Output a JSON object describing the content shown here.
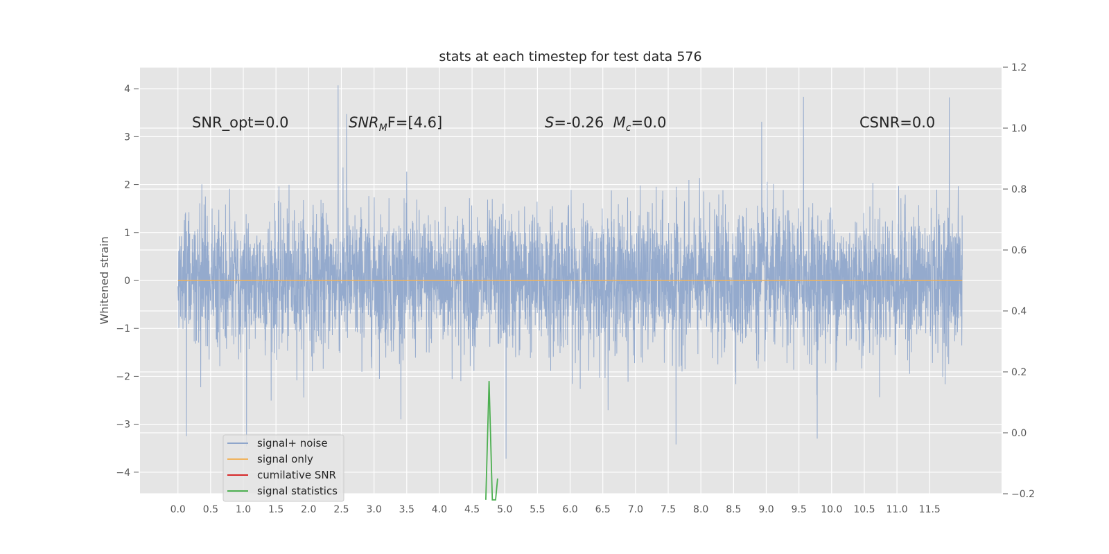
{
  "chart_data": {
    "type": "line",
    "title": "stats at each timestep for test data 576",
    "ylabel": "Whitened strain",
    "xlabel": "",
    "xlim": [
      -0.58,
      12.6
    ],
    "ylim": [
      -4.45,
      4.45
    ],
    "y2lim": [
      -0.2,
      1.2
    ],
    "x_ticks": [
      "0.0",
      "0.5",
      "1.0",
      "1.5",
      "2.0",
      "2.5",
      "3.0",
      "3.5",
      "4.0",
      "4.5",
      "5.0",
      "5.5",
      "6.0",
      "6.5",
      "7.0",
      "7.5",
      "8.0",
      "8.5",
      "9.0",
      "9.5",
      "10.0",
      "10.5",
      "11.0",
      "11.5"
    ],
    "y_ticks": [
      "4",
      "3",
      "2",
      "1",
      "0",
      "−1",
      "−2",
      "−3",
      "−4"
    ],
    "y2_ticks": [
      "1.2",
      "1.0",
      "0.8",
      "0.6",
      "0.4",
      "0.2",
      "0.0",
      "−0.2"
    ],
    "grid": true,
    "legend_position": "lower-left",
    "annotations": {
      "snr_opt": "SNR_opt=0.0",
      "snr_mf_main": "SNR",
      "snr_mf_sub": "M",
      "snr_mf_rest": "F=[4.6]",
      "s_main": "S",
      "s_rest": "=-0.26  ",
      "mc_main": "M",
      "mc_sub": "c",
      "mc_rest": "=0.0",
      "csnr": "CSNR=0.0"
    },
    "series": [
      {
        "name": "signal+ noise",
        "color": "#8fa6cb",
        "description_values": "whitened noise, roughly Gaussian, from x=0.0 to x=12.0",
        "x_range": [
          0.0,
          12.0
        ],
        "envelope_typical": [
          -1.9,
          2.0
        ],
        "peaks": [
          [
            2.45,
            4.07
          ],
          [
            2.58,
            3.47
          ],
          [
            9.57,
            3.83
          ],
          [
            11.8,
            3.82
          ],
          [
            8.93,
            3.31
          ],
          [
            0.13,
            -3.25
          ],
          [
            5.02,
            -3.72
          ],
          [
            7.62,
            -3.42
          ],
          [
            9.78,
            -3.3
          ],
          [
            1.05,
            -3.46
          ]
        ]
      },
      {
        "name": "signal only",
        "color": "#f0b35c",
        "x": [
          0.0,
          12.0
        ],
        "y": [
          0.0,
          0.0
        ]
      },
      {
        "name": "cumilative SNR",
        "color": "#d62728",
        "x": [],
        "y": []
      },
      {
        "name": "signal statistics",
        "color": "#4caf50",
        "axis": "right",
        "x": [
          4.71,
          4.76,
          4.81,
          4.86,
          4.89
        ],
        "y": [
          -0.22,
          0.17,
          -0.22,
          -0.22,
          -0.15
        ]
      }
    ]
  }
}
